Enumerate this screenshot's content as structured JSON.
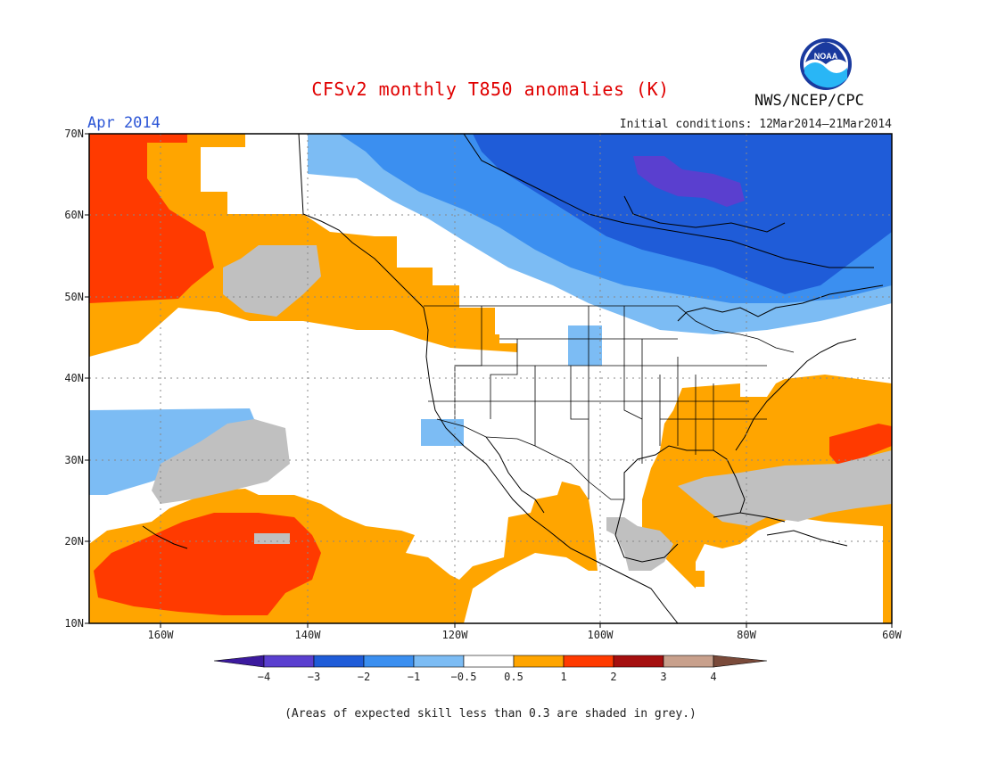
{
  "title": "CFSv2 monthly T850 anomalies (K)",
  "month": "Apr 2014",
  "initial_conditions": "Initial conditions: 12Mar2014–21Mar2014",
  "agency": "NWS/NCEP/CPC",
  "logo_text": "NOAA",
  "footnote": "(Areas of expected skill less than 0.3 are shaded in grey.)",
  "latitude_labels": [
    "70N",
    "60N",
    "50N",
    "40N",
    "30N",
    "20N",
    "10N"
  ],
  "longitude_labels": [
    "160W",
    "140W",
    "120W",
    "100W",
    "80W",
    "60W"
  ],
  "colorbar": {
    "tick_labels": [
      "−4",
      "−3",
      "−2",
      "−1",
      "−0.5",
      "0.5",
      "1",
      "2",
      "3",
      "4"
    ],
    "colors": [
      "#3c1a9e",
      "#5a3fcf",
      "#1f5cd8",
      "#3b8ff0",
      "#7cbcf4",
      "#ffffff",
      "#ffa500",
      "#ff3a00",
      "#a50f0f",
      "#c8a08c",
      "#7a4a3a"
    ]
  },
  "colors": {
    "grey_low_skill": "#c0c0c0",
    "title_red": "#e00000",
    "month_blue": "#2b55d6"
  }
}
